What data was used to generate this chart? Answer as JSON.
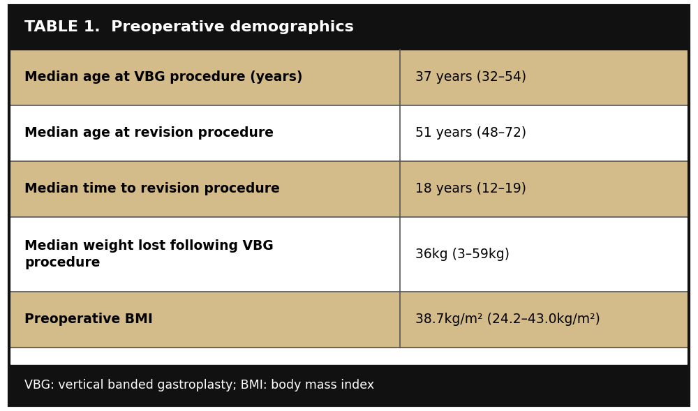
{
  "title": "TABLE 1.  Preoperative demographics",
  "title_bg": "#111111",
  "title_color": "#ffffff",
  "rows": [
    {
      "label": "Median age at VBG procedure (years)",
      "value": "37 years (32–54)",
      "bg": "#d4bc8a",
      "label_bold": true,
      "multiline": false
    },
    {
      "label": "Median age at revision procedure",
      "value": "51 years (48–72)",
      "bg": "#ffffff",
      "label_bold": true,
      "multiline": false
    },
    {
      "label": "Median time to revision procedure",
      "value": "18 years (12–19)",
      "bg": "#d4bc8a",
      "label_bold": true,
      "multiline": false
    },
    {
      "label": "Median weight lost following VBG\nprocedure",
      "value": "36kg (3–59kg)",
      "bg": "#ffffff",
      "label_bold": true,
      "multiline": true
    },
    {
      "label": "Preoperative BMI",
      "value": "38.7kg/m² (24.2–43.0kg/m²)",
      "bg": "#d4bc8a",
      "label_bold": true,
      "multiline": false
    }
  ],
  "footer": "VBG: vertical banded gastroplasty; BMI: body mass index",
  "footer_bg": "#111111",
  "footer_color": "#ffffff",
  "col_split": 0.575,
  "border_color": "#111111",
  "grid_color": "#555555",
  "title_fontsize": 16,
  "body_fontsize": 13.5,
  "footer_fontsize": 12.5
}
